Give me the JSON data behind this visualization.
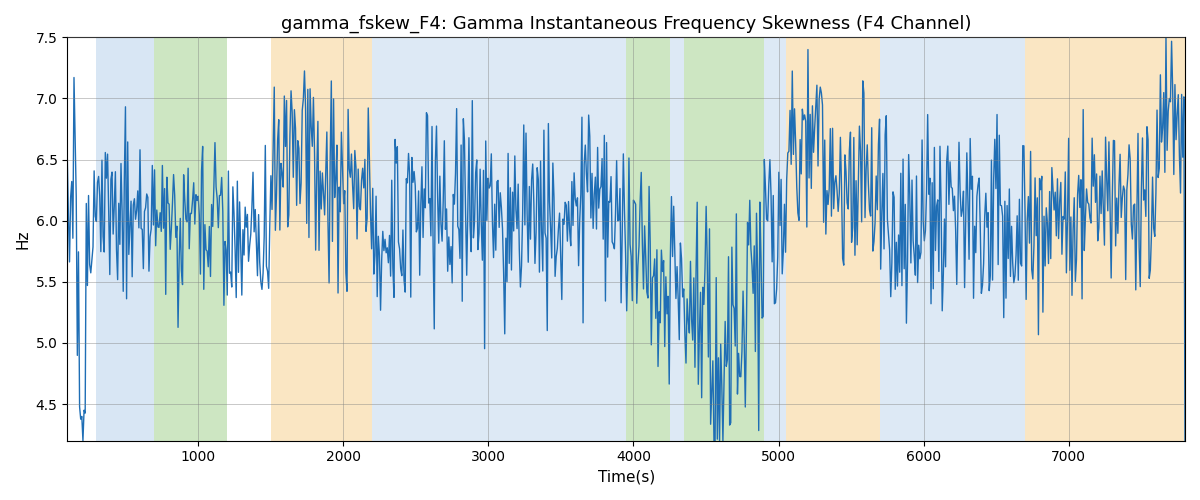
{
  "title": "gamma_fskew_F4: Gamma Instantaneous Frequency Skewness (F4 Channel)",
  "xlabel": "Time(s)",
  "ylabel": "Hz",
  "xlim": [
    100,
    7800
  ],
  "ylim": [
    4.2,
    7.5
  ],
  "line_color": "#1f6eb5",
  "line_width": 1.0,
  "background_color": "#ffffff",
  "grid": true,
  "colored_bands": [
    {
      "xmin": 300,
      "xmax": 700,
      "color": "#aac8e8",
      "alpha": 0.45
    },
    {
      "xmin": 700,
      "xmax": 1200,
      "color": "#90c878",
      "alpha": 0.45
    },
    {
      "xmin": 1500,
      "xmax": 2200,
      "color": "#f5c87a",
      "alpha": 0.45
    },
    {
      "xmin": 2200,
      "xmax": 3800,
      "color": "#aac8e8",
      "alpha": 0.4
    },
    {
      "xmin": 3800,
      "xmax": 3950,
      "color": "#aac8e8",
      "alpha": 0.4
    },
    {
      "xmin": 3950,
      "xmax": 4250,
      "color": "#90c878",
      "alpha": 0.45
    },
    {
      "xmin": 4250,
      "xmax": 4350,
      "color": "#aac8e8",
      "alpha": 0.4
    },
    {
      "xmin": 4350,
      "xmax": 4900,
      "color": "#90c878",
      "alpha": 0.45
    },
    {
      "xmin": 4900,
      "xmax": 5050,
      "color": "#aac8e8",
      "alpha": 0.4
    },
    {
      "xmin": 5050,
      "xmax": 5700,
      "color": "#f5c87a",
      "alpha": 0.45
    },
    {
      "xmin": 5700,
      "xmax": 6700,
      "color": "#aac8e8",
      "alpha": 0.4
    },
    {
      "xmin": 6700,
      "xmax": 7800,
      "color": "#f5c87a",
      "alpha": 0.45
    }
  ],
  "title_fontsize": 13,
  "axis_label_fontsize": 11,
  "tick_fontsize": 10
}
